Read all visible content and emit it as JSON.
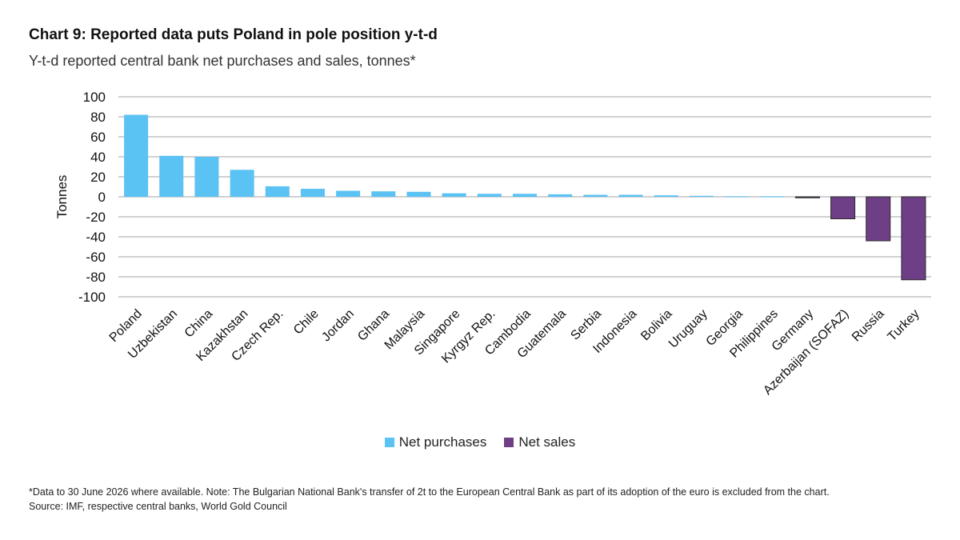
{
  "header": {
    "title": "Chart 9: Reported data puts Poland in pole position y-t-d",
    "subtitle": "Y-t-d reported central bank net purchases and sales, tonnes*"
  },
  "colors": {
    "purchases": "#5bc2f4",
    "sales": "#6e3f86",
    "grid": "#b5b5b5"
  },
  "legend": {
    "purchases_label": "Net purchases",
    "sales_label": "Net sales"
  },
  "footer": {
    "note": "*Data to 30 June 2026 where available. Note: The Bulgarian National Bank's transfer of 2t to the European Central Bank as part of its adoption of the euro is excluded from the chart.",
    "source": "Source: IMF, respective central banks, World Gold Council"
  },
  "chart_data": {
    "type": "bar",
    "title": "Chart 9: Reported data puts Poland in pole position y-t-d",
    "subtitle": "Y-t-d reported central bank net purchases and sales, tonnes*",
    "ylabel": "Tonnes",
    "xlabel": "",
    "ylim": [
      -100,
      100
    ],
    "yticks": [
      100,
      80,
      60,
      40,
      20,
      0,
      -20,
      -40,
      -60,
      -80,
      -100
    ],
    "grid": true,
    "legend_position": "bottom",
    "categories": [
      "Poland",
      "Uzbekistan",
      "China",
      "Kazakhstan",
      "Czech Rep.",
      "Chile",
      "Jordan",
      "Ghana",
      "Malaysia",
      "Singapore",
      "Kyrgyz Rep.",
      "Cambodia",
      "Guatemala",
      "Serbia",
      "Indonesia",
      "Bolivia",
      "Uruguay",
      "Georgia",
      "Philippines",
      "Germany",
      "Azerbaijan (SOFAZ)",
      "Russia",
      "Turkey"
    ],
    "series": [
      {
        "name": "Net purchases",
        "values": [
          82,
          41,
          40,
          27,
          10.5,
          8,
          6,
          5.5,
          5,
          3.5,
          3,
          3,
          2.5,
          2,
          2,
          1.5,
          1,
          0.5,
          0.5,
          null,
          null,
          null,
          null
        ]
      },
      {
        "name": "Net sales",
        "values": [
          null,
          null,
          null,
          null,
          null,
          null,
          null,
          null,
          null,
          null,
          null,
          null,
          null,
          null,
          null,
          null,
          null,
          null,
          null,
          -1,
          -22,
          -44,
          -83
        ]
      }
    ]
  }
}
